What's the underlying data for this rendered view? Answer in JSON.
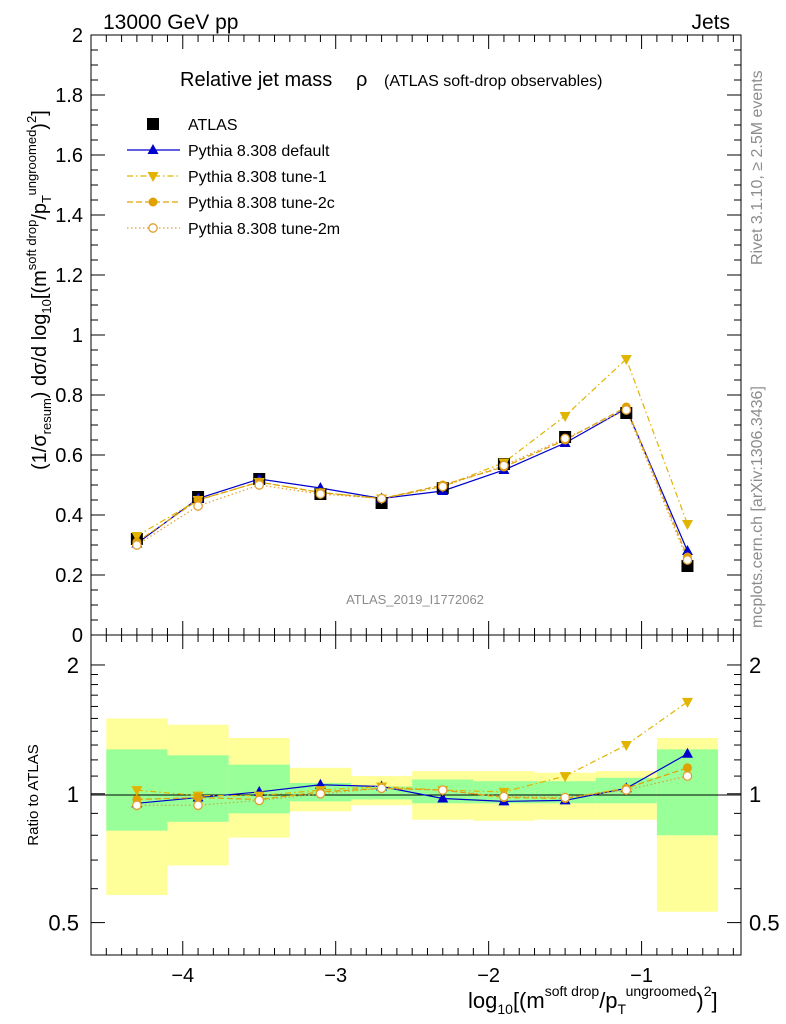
{
  "header": {
    "energy": "13000 GeV pp",
    "process": "Jets"
  },
  "side_labels": {
    "rivet": "Rivet 3.1.10, ≥ 2.5M events",
    "mcplots": "mcplots.cern.ch [arXiv:1306.3436]"
  },
  "chart_data": [
    {
      "type": "line",
      "title": "Relative jet mass",
      "title_rho": "ρ",
      "subtitle": "(ATLAS soft-drop observables)",
      "watermark": "ATLAS_2019_I1772062",
      "ylabel": "(1/σresum) dσ/d log10[(m^soft drop/pT^ungroomed)^2]",
      "xlim": [
        -4.6,
        -0.35
      ],
      "ylim": [
        0,
        2
      ],
      "y_ticks": [
        0,
        0.2,
        0.4,
        0.6,
        0.8,
        1,
        1.2,
        1.4,
        1.6,
        1.8,
        2
      ],
      "y_tick_labels": [
        "0",
        "0.2",
        "0.4",
        "0.6",
        "0.8",
        "1",
        "1.2",
        "1.4",
        "1.6",
        "1.8",
        "2"
      ],
      "x": [
        -4.3,
        -3.9,
        -3.5,
        -3.1,
        -2.7,
        -2.3,
        -1.9,
        -1.5,
        -1.1,
        -0.7
      ],
      "legend_position": "top-left",
      "series": [
        {
          "name": "ATLAS",
          "color": "#000000",
          "marker": "square",
          "values": [
            0.32,
            0.46,
            0.52,
            0.47,
            0.44,
            0.49,
            0.57,
            0.66,
            0.74,
            0.23
          ]
        },
        {
          "name": "Pythia 8.308 default",
          "color": "#0000cc",
          "marker": "triangle-up",
          "dash": "solid",
          "values": [
            0.305,
            0.455,
            0.52,
            0.49,
            0.455,
            0.48,
            0.55,
            0.64,
            0.755,
            0.28
          ]
        },
        {
          "name": "Pythia 8.308 tune-1",
          "color": "#e0b400",
          "marker": "triangle-down",
          "dash": "dashdot",
          "values": [
            0.33,
            0.45,
            0.51,
            0.475,
            0.455,
            0.495,
            0.575,
            0.73,
            0.92,
            0.37
          ]
        },
        {
          "name": "Pythia 8.308 tune-2c",
          "color": "#e0a000",
          "marker": "circle",
          "dash": "dashed",
          "values": [
            0.31,
            0.45,
            0.51,
            0.475,
            0.455,
            0.5,
            0.56,
            0.65,
            0.76,
            0.26
          ]
        },
        {
          "name": "Pythia 8.308 tune-2m",
          "color": "#e0a030",
          "marker": "circle-open",
          "dash": "dotted",
          "values": [
            0.3,
            0.43,
            0.5,
            0.47,
            0.455,
            0.495,
            0.565,
            0.655,
            0.75,
            0.25
          ]
        }
      ]
    },
    {
      "type": "line",
      "ylabel": "Ratio to ATLAS",
      "xlabel": "log10[(m^soft drop/pT^ungroomed)^2]",
      "xlim": [
        -4.6,
        -0.35
      ],
      "ylim": [
        0.42,
        2.35
      ],
      "log_y": true,
      "y_tick_labels": [
        {
          "value": 0.5,
          "label": "0.5"
        },
        {
          "value": 1,
          "label": "1"
        },
        {
          "value": 2,
          "label": "2"
        }
      ],
      "x_tick_labels": [
        {
          "value": -4,
          "label": "−4"
        },
        {
          "value": -3,
          "label": "−3"
        },
        {
          "value": -2,
          "label": "−2"
        },
        {
          "value": -1,
          "label": "−1"
        }
      ],
      "bin_edges": [
        -4.5,
        -4.1,
        -3.7,
        -3.3,
        -2.9,
        -2.5,
        -2.1,
        -1.7,
        -1.3,
        -0.9,
        -0.5
      ],
      "band_outer": [
        [
          0.58,
          1.5
        ],
        [
          0.68,
          1.45
        ],
        [
          0.79,
          1.35
        ],
        [
          0.91,
          1.15
        ],
        [
          0.94,
          1.1
        ],
        [
          0.87,
          1.13
        ],
        [
          0.865,
          1.13
        ],
        [
          0.87,
          1.12
        ],
        [
          0.87,
          1.13
        ],
        [
          0.53,
          1.35
        ]
      ],
      "band_inner": [
        [
          0.82,
          1.27
        ],
        [
          0.86,
          1.23
        ],
        [
          0.9,
          1.17
        ],
        [
          0.96,
          1.06
        ],
        [
          0.97,
          1.04
        ],
        [
          0.95,
          1.08
        ],
        [
          0.95,
          1.07
        ],
        [
          0.95,
          1.07
        ],
        [
          0.95,
          1.09
        ],
        [
          0.8,
          1.27
        ]
      ],
      "series": [
        {
          "name": "Pythia 8.308 default",
          "color": "#0000cc",
          "marker": "triangle-up",
          "dash": "solid",
          "values": [
            0.95,
            0.98,
            1.01,
            1.05,
            1.04,
            0.975,
            0.96,
            0.965,
            1.03,
            1.24
          ]
        },
        {
          "name": "Pythia 8.308 tune-1",
          "color": "#e0b400",
          "marker": "triangle-down",
          "dash": "dashdot",
          "values": [
            1.02,
            0.99,
            0.99,
            1.02,
            1.04,
            1.02,
            1.01,
            1.1,
            1.3,
            1.64
          ]
        },
        {
          "name": "Pythia 8.308 tune-2c",
          "color": "#e0a000",
          "marker": "circle",
          "dash": "dashed",
          "values": [
            0.97,
            0.98,
            0.97,
            1.01,
            1.03,
            1.02,
            0.98,
            0.975,
            1.03,
            1.15
          ]
        },
        {
          "name": "Pythia 8.308 tune-2m",
          "color": "#e0a030",
          "marker": "circle-open",
          "dash": "dotted",
          "values": [
            0.94,
            0.94,
            0.965,
            1.0,
            1.03,
            1.02,
            0.985,
            0.98,
            1.02,
            1.1
          ]
        }
      ]
    }
  ]
}
